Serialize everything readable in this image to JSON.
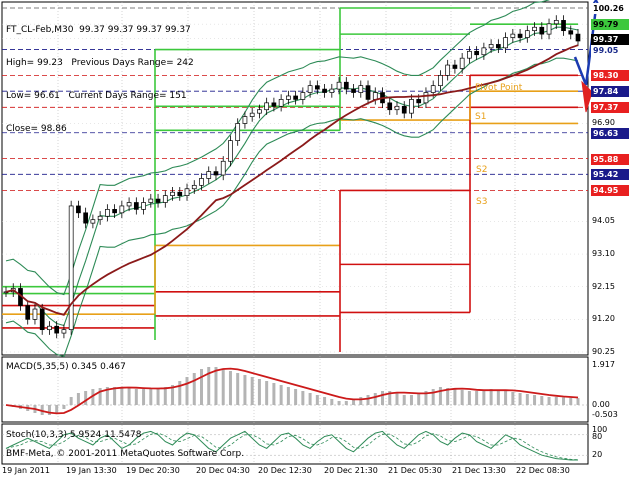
{
  "header": {
    "line1": "FT_CL-Feb,M30  99.37 99.37 99.37 99.37",
    "line2": "High= 99.23   Previous Days Range= 242",
    "line3": "Low= 96.61   Current Days Range= 151",
    "line4": "Close= 98.86"
  },
  "price_axis": [
    "100.26",
    "99.79",
    "99.37",
    "99.05",
    "98.30",
    "97.84",
    "97.37",
    "96.90",
    "96.63",
    "95.88",
    "95.42",
    "94.95",
    "94.05",
    "93.10",
    "92.15",
    "91.20",
    "90.25"
  ],
  "price_tags": [
    {
      "text": "100.26",
      "bg": "#ffffff",
      "fg": "#000000"
    },
    {
      "text": "99.79",
      "bg": "#3cc83c",
      "fg": "#000000"
    },
    {
      "text": "99.37",
      "bg": "#000000",
      "fg": "#ffffff"
    },
    {
      "text": "99.05",
      "bg": "#ffffff",
      "fg": "#1a2a8a"
    },
    {
      "text": "98.30",
      "bg": "#e82020",
      "fg": "#ffffff"
    },
    {
      "text": "97.84",
      "bg": "#1a1a8a",
      "fg": "#ffffff"
    },
    {
      "text": "97.37",
      "bg": "#e82020",
      "fg": "#ffffff"
    },
    {
      "text": "96.63",
      "bg": "#1a1a8a",
      "fg": "#ffffff"
    },
    {
      "text": "95.88",
      "bg": "#e82020",
      "fg": "#ffffff"
    },
    {
      "text": "95.42",
      "bg": "#1a1a8a",
      "fg": "#ffffff"
    },
    {
      "text": "94.95",
      "bg": "#e82020",
      "fg": "#ffffff"
    }
  ],
  "pivot_labels": {
    "pivot": "Pivot Point",
    "s1": "S1",
    "s2": "S2",
    "s3": "S3"
  },
  "macd": {
    "label": "MACD(5,35,5) 0.345 0.467",
    "axis": [
      "1.917",
      "0.00",
      "-0.503"
    ]
  },
  "stoch": {
    "label": "Stoch(10,3,3) 5.9524 11.5478",
    "axis": [
      "100",
      "80",
      "20"
    ]
  },
  "copyright": "BMF-Meta, © 2001-2011 MetaQuotes Software Corp.",
  "time_axis": [
    "19 Jan 2011",
    "19 Jan 13:30",
    "19 Dec 20:30",
    "20 Dec 04:30",
    "20 Dec 12:30",
    "20 Dec 21:30",
    "21 Dec 05:30",
    "21 Dec 13:30",
    "22 Dec 08:30"
  ],
  "colors": {
    "bull_candle": "#ffffff",
    "bear_candle": "#000000",
    "ma_slow": "#8b1a1a",
    "bands": "#2e8b57",
    "macd_signal": "#cc1a1a",
    "histogram": "#b4b4b4",
    "stoch_main": "#2e8b57",
    "stoch_signal": "#2e8b57",
    "resistance": "#3cc83c",
    "support": "#d01010",
    "pivot": "#e8a019"
  },
  "chart_data": {
    "type": "candlestick",
    "ylim": [
      90.25,
      100.26
    ],
    "close_series": [
      92.0,
      92.1,
      91.6,
      91.2,
      91.5,
      90.9,
      91.0,
      90.8,
      90.9,
      94.5,
      94.3,
      94.0,
      94.1,
      94.2,
      94.4,
      94.3,
      94.5,
      94.6,
      94.4,
      94.6,
      94.7,
      94.6,
      94.8,
      94.9,
      94.8,
      95.0,
      95.1,
      95.3,
      95.5,
      95.4,
      95.8,
      96.4,
      96.9,
      97.1,
      97.2,
      97.3,
      97.5,
      97.4,
      97.6,
      97.7,
      97.6,
      97.8,
      98.0,
      97.9,
      97.8,
      97.9,
      98.1,
      97.9,
      97.8,
      98.0,
      97.6,
      97.8,
      97.5,
      97.3,
      97.4,
      97.2,
      97.6,
      97.5,
      97.8,
      98.0,
      98.3,
      98.6,
      98.5,
      98.8,
      99.0,
      98.9,
      99.1,
      99.2,
      99.1,
      99.4,
      99.5,
      99.4,
      99.6,
      99.7,
      99.5,
      99.8,
      99.9,
      99.6,
      99.5,
      99.3
    ],
    "macd_series": [
      0.0,
      -0.1,
      -0.2,
      -0.3,
      -0.4,
      -0.5,
      -0.5,
      -0.4,
      -0.2,
      0.4,
      0.6,
      0.7,
      0.8,
      0.85,
      0.9,
      0.9,
      0.88,
      0.85,
      0.8,
      0.8,
      0.82,
      0.85,
      0.9,
      1.0,
      1.2,
      1.4,
      1.6,
      1.8,
      1.9,
      1.9,
      1.8,
      1.7,
      1.6,
      1.5,
      1.4,
      1.3,
      1.2,
      1.1,
      1.0,
      0.9,
      0.8,
      0.7,
      0.6,
      0.5,
      0.4,
      0.3,
      0.2,
      0.2,
      0.3,
      0.4,
      0.5,
      0.6,
      0.7,
      0.7,
      0.6,
      0.5,
      0.5,
      0.6,
      0.7,
      0.8,
      0.9,
      0.85,
      0.8,
      0.75,
      0.7,
      0.7,
      0.75,
      0.8,
      0.75,
      0.7,
      0.65,
      0.6,
      0.55,
      0.5,
      0.45,
      0.4,
      0.4,
      0.38,
      0.36,
      0.345
    ],
    "stoch_series": [
      40,
      50,
      60,
      70,
      60,
      50,
      40,
      60,
      80,
      85,
      70,
      60,
      50,
      70,
      80,
      60,
      40,
      50,
      70,
      85,
      90,
      80,
      60,
      50,
      70,
      85,
      80,
      60,
      40,
      30,
      50,
      70,
      80,
      90,
      70,
      50,
      40,
      60,
      80,
      85,
      70,
      50,
      40,
      60,
      75,
      80,
      60,
      40,
      30,
      50,
      70,
      85,
      90,
      70,
      50,
      40,
      60,
      80,
      90,
      80,
      60,
      50,
      70,
      85,
      80,
      60,
      50,
      40,
      60,
      80,
      70,
      50,
      40,
      30,
      20,
      15,
      10,
      8,
      6,
      5.95
    ]
  }
}
